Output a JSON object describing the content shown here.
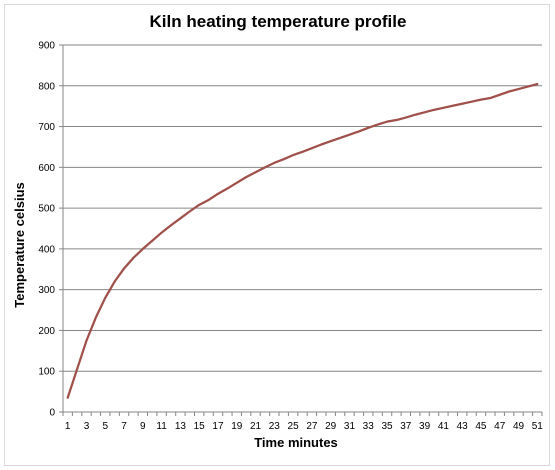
{
  "chart_data": {
    "type": "line",
    "title": "Kiln heating temperature profile",
    "xlabel": "Time minutes",
    "ylabel": "Temperature celsius",
    "ylim": [
      0,
      900
    ],
    "yticks": [
      0,
      100,
      200,
      300,
      400,
      500,
      600,
      700,
      800,
      900
    ],
    "xticks": [
      1,
      3,
      5,
      7,
      9,
      11,
      13,
      15,
      17,
      19,
      21,
      23,
      25,
      27,
      29,
      31,
      33,
      35,
      37,
      39,
      41,
      43,
      45,
      47,
      49,
      51
    ],
    "grid": "horizontal",
    "legend": "none",
    "series": [
      {
        "color": "#A0504A",
        "x": [
          1,
          2,
          3,
          4,
          5,
          6,
          7,
          8,
          9,
          10,
          11,
          12,
          13,
          14,
          15,
          16,
          17,
          18,
          19,
          20,
          21,
          22,
          23,
          24,
          25,
          26,
          27,
          28,
          29,
          30,
          31,
          32,
          33,
          34,
          35,
          36,
          37,
          38,
          39,
          40,
          41,
          42,
          43,
          44,
          45,
          46,
          47,
          48,
          49,
          50,
          51
        ],
        "values": [
          35,
          105,
          175,
          232,
          280,
          320,
          352,
          378,
          400,
          420,
          440,
          458,
          475,
          492,
          508,
          520,
          535,
          548,
          562,
          576,
          588,
          600,
          611,
          620,
          630,
          638,
          647,
          656,
          664,
          672,
          680,
          688,
          697,
          705,
          712,
          716,
          722,
          729,
          735,
          741,
          746,
          751,
          756,
          761,
          766,
          770,
          778,
          786,
          792,
          798,
          804
        ]
      }
    ]
  }
}
